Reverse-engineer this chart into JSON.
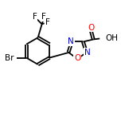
{
  "bg_color": "#ffffff",
  "bond_color": "#000000",
  "atom_colors": {
    "N": "#0000cd",
    "O": "#ff0000",
    "Br": "#000000",
    "F": "#000000",
    "C": "#000000",
    "H": "#000000"
  },
  "line_width": 1.3,
  "font_size": 7.5,
  "figsize": [
    1.52,
    1.52
  ],
  "dpi": 100
}
